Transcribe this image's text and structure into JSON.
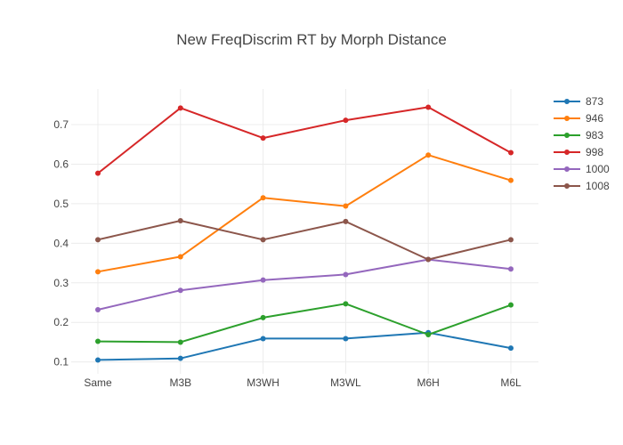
{
  "chart_data": {
    "type": "line",
    "title": "New FreqDiscrim RT by Morph Distance",
    "categories": [
      "Same",
      "M3B",
      "M3WH",
      "M3WL",
      "M6H",
      "M6L"
    ],
    "ylim": [
      0.07,
      0.79
    ],
    "yticks": [
      0.1,
      0.2,
      0.3,
      0.4,
      0.5,
      0.6,
      0.7
    ],
    "grid": true,
    "legend_position": "top-right",
    "series": [
      {
        "name": "873",
        "color": "#1f77b4",
        "values": [
          0.105,
          0.109,
          0.159,
          0.159,
          0.174,
          0.135
        ]
      },
      {
        "name": "946",
        "color": "#ff7f0e",
        "values": [
          0.328,
          0.366,
          0.515,
          0.494,
          0.623,
          0.559
        ]
      },
      {
        "name": "983",
        "color": "#2ca02c",
        "values": [
          0.152,
          0.15,
          0.212,
          0.247,
          0.169,
          0.244
        ]
      },
      {
        "name": "998",
        "color": "#d62728",
        "values": [
          0.577,
          0.742,
          0.666,
          0.711,
          0.744,
          0.629
        ]
      },
      {
        "name": "1000",
        "color": "#9467bd",
        "values": [
          0.232,
          0.281,
          0.307,
          0.321,
          0.359,
          0.335
        ]
      },
      {
        "name": "1008",
        "color": "#8c564b",
        "values": [
          0.409,
          0.457,
          0.409,
          0.455,
          0.359,
          0.409
        ]
      }
    ]
  }
}
